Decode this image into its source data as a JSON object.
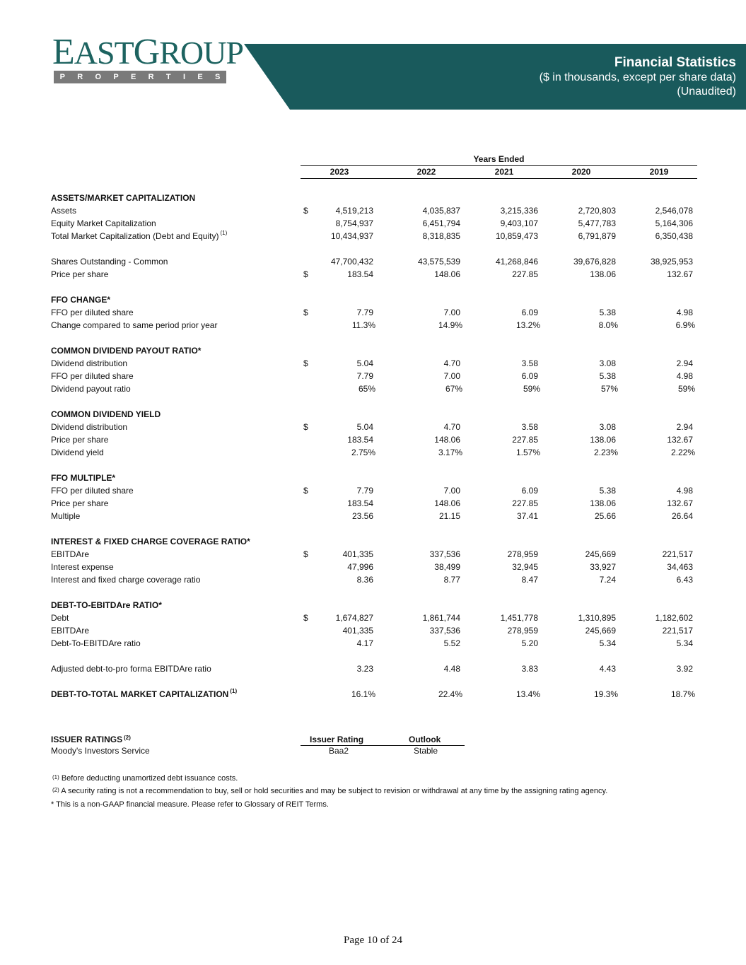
{
  "logo": {
    "top": "EASTGROUP",
    "bottom": "PROPERTIES"
  },
  "header": {
    "title": "Financial Statistics",
    "subtitle": "($ in thousands, except per share data)",
    "note": "(Unaudited)"
  },
  "table": {
    "group_label": "Years Ended",
    "years": [
      "2023",
      "2022",
      "2021",
      "2020",
      "2019"
    ],
    "rows": [
      {
        "type": "section",
        "label": "ASSETS/MARKET CAPITALIZATION"
      },
      {
        "type": "row",
        "label": "Assets",
        "dollar": "$",
        "values": [
          "4,519,213",
          "4,035,837",
          "3,215,336",
          "2,720,803",
          "2,546,078"
        ]
      },
      {
        "type": "row",
        "label": "Equity Market Capitalization",
        "values": [
          "8,754,937",
          "6,451,794",
          "9,403,107",
          "5,477,783",
          "5,164,306"
        ]
      },
      {
        "type": "row",
        "label": "Total Market Capitalization (Debt and Equity)",
        "sup": "(1)",
        "values": [
          "10,434,937",
          "8,318,835",
          "10,859,473",
          "6,791,879",
          "6,350,438"
        ]
      },
      {
        "type": "blank"
      },
      {
        "type": "row",
        "label": "Shares Outstanding - Common",
        "values": [
          "47,700,432",
          "43,575,539",
          "41,268,846",
          "39,676,828",
          "38,925,953"
        ]
      },
      {
        "type": "row",
        "label": "Price per share",
        "dollar": "$",
        "values": [
          "183.54",
          "148.06",
          "227.85",
          "138.06",
          "132.67"
        ]
      },
      {
        "type": "blank"
      },
      {
        "type": "section",
        "label": "FFO CHANGE*"
      },
      {
        "type": "row",
        "label": "FFO per diluted share",
        "dollar": "$",
        "values": [
          "7.79",
          "7.00",
          "6.09",
          "5.38",
          "4.98"
        ]
      },
      {
        "type": "row",
        "label": "Change compared to same period prior year",
        "pct": true,
        "values": [
          "11.3%",
          "14.9%",
          "13.2%",
          "8.0%",
          "6.9%"
        ]
      },
      {
        "type": "blank"
      },
      {
        "type": "section",
        "label": "COMMON DIVIDEND PAYOUT RATIO*"
      },
      {
        "type": "row",
        "label": "Dividend distribution",
        "dollar": "$",
        "values": [
          "5.04",
          "4.70",
          "3.58",
          "3.08",
          "2.94"
        ]
      },
      {
        "type": "row",
        "label": "FFO per diluted share",
        "values": [
          "7.79",
          "7.00",
          "6.09",
          "5.38",
          "4.98"
        ]
      },
      {
        "type": "row",
        "label": "Dividend payout ratio",
        "pct": true,
        "values": [
          "65%",
          "67%",
          "59%",
          "57%",
          "59%"
        ]
      },
      {
        "type": "blank"
      },
      {
        "type": "section",
        "label": "COMMON DIVIDEND YIELD"
      },
      {
        "type": "row",
        "label": "Dividend distribution",
        "dollar": "$",
        "values": [
          "5.04",
          "4.70",
          "3.58",
          "3.08",
          "2.94"
        ]
      },
      {
        "type": "row",
        "label": "Price per share",
        "values": [
          "183.54",
          "148.06",
          "227.85",
          "138.06",
          "132.67"
        ]
      },
      {
        "type": "row",
        "label": "Dividend yield",
        "pct": true,
        "values": [
          "2.75%",
          "3.17%",
          "1.57%",
          "2.23%",
          "2.22%"
        ]
      },
      {
        "type": "blank"
      },
      {
        "type": "section",
        "label": "FFO MULTIPLE*"
      },
      {
        "type": "row",
        "label": "FFO per diluted share",
        "dollar": "$",
        "values": [
          "7.79",
          "7.00",
          "6.09",
          "5.38",
          "4.98"
        ]
      },
      {
        "type": "row",
        "label": "Price per share",
        "values": [
          "183.54",
          "148.06",
          "227.85",
          "138.06",
          "132.67"
        ]
      },
      {
        "type": "row",
        "label": "Multiple",
        "values": [
          "23.56",
          "21.15",
          "37.41",
          "25.66",
          "26.64"
        ]
      },
      {
        "type": "blank"
      },
      {
        "type": "section",
        "label": "INTEREST & FIXED CHARGE COVERAGE RATIO*"
      },
      {
        "type": "row",
        "label": "EBITDAre",
        "dollar": "$",
        "values": [
          "401,335",
          "337,536",
          "278,959",
          "245,669",
          "221,517"
        ]
      },
      {
        "type": "row",
        "label": "Interest expense",
        "values": [
          "47,996",
          "38,499",
          "32,945",
          "33,927",
          "34,463"
        ]
      },
      {
        "type": "row",
        "label": "Interest and fixed charge coverage ratio",
        "values": [
          "8.36",
          "8.77",
          "8.47",
          "7.24",
          "6.43"
        ]
      },
      {
        "type": "blank"
      },
      {
        "type": "section",
        "label": "DEBT-TO-EBITDAre RATIO*"
      },
      {
        "type": "row",
        "label": "Debt",
        "dollar": "$",
        "values": [
          "1,674,827",
          "1,861,744",
          "1,451,778",
          "1,310,895",
          "1,182,602"
        ]
      },
      {
        "type": "row",
        "label": "EBITDAre",
        "values": [
          "401,335",
          "337,536",
          "278,959",
          "245,669",
          "221,517"
        ]
      },
      {
        "type": "row",
        "label": "Debt-To-EBITDAre ratio",
        "values": [
          "4.17",
          "5.52",
          "5.20",
          "5.34",
          "5.34"
        ]
      },
      {
        "type": "blank"
      },
      {
        "type": "row",
        "label": "Adjusted debt-to-pro forma EBITDAre ratio",
        "values": [
          "3.23",
          "4.48",
          "3.83",
          "4.43",
          "3.92"
        ]
      },
      {
        "type": "blank"
      },
      {
        "type": "section",
        "label": "DEBT-TO-TOTAL MARKET CAPITALIZATION",
        "sup": "(1)",
        "pct": true,
        "values": [
          "16.1%",
          "22.4%",
          "13.4%",
          "19.3%",
          "18.7%"
        ]
      }
    ]
  },
  "ratings": {
    "title": "ISSUER RATINGS",
    "title_sup": "(2)",
    "col_rating": "Issuer Rating",
    "col_outlook": "Outlook",
    "agency": "Moody's Investors Service",
    "rating": "Baa2",
    "outlook": "Stable"
  },
  "footnotes": [
    {
      "mark": "(1)",
      "text": "Before deducting unamortized debt issuance costs."
    },
    {
      "mark": "(2)",
      "text": "A security rating is not a recommendation to buy, sell or hold securities and may be subject to revision or withdrawal at any time by the assigning rating agency."
    },
    {
      "mark": "",
      "text": "* This is a non-GAAP financial measure.  Please refer to Glossary of REIT Terms."
    }
  ],
  "page_number": "Page 10 of 24"
}
